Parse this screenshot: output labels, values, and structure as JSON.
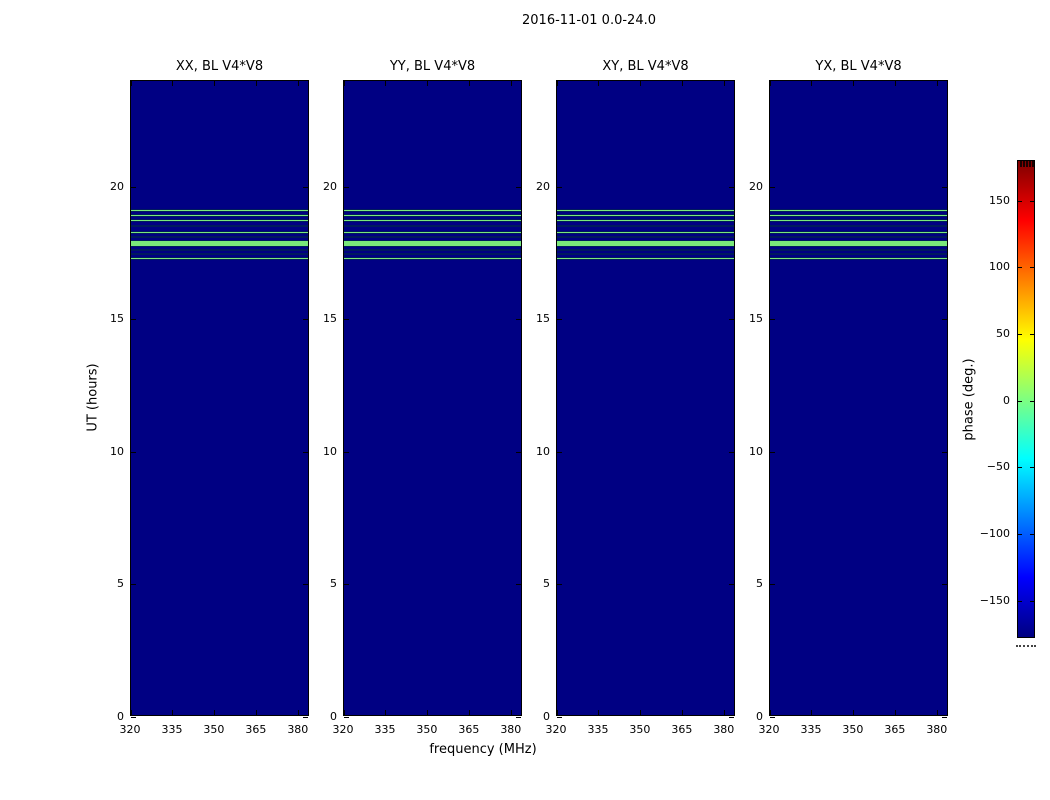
{
  "figure": {
    "suptitle": "2016-11-01 0.0-24.0",
    "xlabel": "frequency (MHz)",
    "ylabel": "UT (hours)"
  },
  "chart_data": {
    "type": "heatmap",
    "title": "2016-11-01 0.0-24.0",
    "xlabel": "frequency (MHz)",
    "ylabel": "UT (hours)",
    "panels": [
      {
        "title": "XX, BL V4*V8"
      },
      {
        "title": "YY, BL V4*V8"
      },
      {
        "title": "XY, BL V4*V8"
      },
      {
        "title": "YX, BL V4*V8"
      }
    ],
    "x_range_mhz": [
      320,
      384
    ],
    "x_ticks": [
      320,
      335,
      350,
      365,
      380
    ],
    "x_tick_labels": [
      "320",
      "335",
      "350",
      "365",
      "380"
    ],
    "y_range_hours": [
      0,
      24
    ],
    "y_ticks": [
      0,
      5,
      10,
      15,
      20
    ],
    "y_tick_labels": [
      "0",
      "5",
      "10",
      "15",
      "20"
    ],
    "background_phase_deg": -180,
    "stripe_phase_deg": 0,
    "stripe_band_ut_hours": [
      17.25,
      19.16
    ],
    "phase_stripes_ut_hours": [
      [
        17.25,
        17.35
      ],
      [
        17.42,
        17.5
      ],
      [
        17.57,
        17.65
      ],
      [
        17.74,
        17.99
      ],
      [
        18.06,
        18.14
      ],
      [
        18.23,
        18.33
      ],
      [
        18.48,
        18.56
      ],
      [
        18.68,
        18.78
      ],
      [
        18.87,
        18.97
      ],
      [
        19.06,
        19.16
      ]
    ],
    "colorbar": {
      "label": "phase (deg.)",
      "ticks": [
        150,
        100,
        50,
        0,
        -50,
        -100,
        -150
      ],
      "tick_labels": [
        "150",
        "100",
        "50",
        "0",
        "−50",
        "−100",
        "−150"
      ],
      "range_deg": [
        -180,
        180
      ],
      "colormap": "jet"
    },
    "colors": {
      "background_navy": "#000083",
      "stripe_green": "#7AE87A",
      "jet_stops_top_to_bottom": [
        "#800000",
        "#FF0000",
        "#FFFF00",
        "#00FFFF",
        "#0000FF",
        "#000080"
      ]
    },
    "grid": false,
    "legend": false
  }
}
